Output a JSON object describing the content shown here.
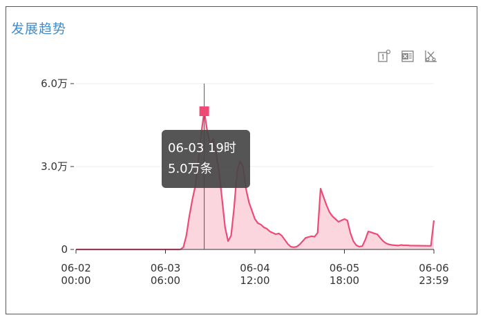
{
  "title": "发展趋势",
  "toolbar": {
    "icons": [
      "one-to-one-icon",
      "excel-export-icon",
      "scissors-icon"
    ]
  },
  "tooltip": {
    "time": "06-03 19时",
    "value": "5.0万条"
  },
  "colors": {
    "title": "#3e8ed0",
    "line": "#ee4a76",
    "area": "#fbd6df",
    "marker": "#ee4a76",
    "grid": "#eeeeee"
  },
  "chart_data": {
    "type": "area",
    "title": "",
    "xlabel": "",
    "ylabel": "",
    "ylim": [
      0,
      60000
    ],
    "y_ticks": [
      {
        "value": 0,
        "label": "0"
      },
      {
        "value": 30000,
        "label": "3.0万"
      },
      {
        "value": 60000,
        "label": "6.0万"
      }
    ],
    "x_ticks": [
      {
        "line1": "06-02",
        "line2": "00:00",
        "hour": 0
      },
      {
        "line1": "06-03",
        "line2": "06:00",
        "hour": 30
      },
      {
        "line1": "06-04",
        "line2": "12:00",
        "hour": 60
      },
      {
        "line1": "06-05",
        "line2": "18:00",
        "hour": 90
      },
      {
        "line1": "06-06",
        "line2": "23:59",
        "hour": 120
      }
    ],
    "x_unit": "hours from 06-02 00:00",
    "highlight": {
      "hour": 43,
      "value": 50000
    },
    "series": [
      {
        "points": [
          [
            0,
            0
          ],
          [
            30,
            0
          ],
          [
            35,
            0
          ],
          [
            36,
            800
          ],
          [
            37,
            5000
          ],
          [
            38,
            12000
          ],
          [
            39,
            18000
          ],
          [
            40,
            23000
          ],
          [
            41,
            32000
          ],
          [
            42,
            42000
          ],
          [
            43,
            50000
          ],
          [
            44,
            43000
          ],
          [
            45,
            38000
          ],
          [
            46,
            40000
          ],
          [
            47,
            35000
          ],
          [
            48,
            28000
          ],
          [
            49,
            18000
          ],
          [
            50,
            8000
          ],
          [
            51,
            3000
          ],
          [
            52,
            5000
          ],
          [
            53,
            15000
          ],
          [
            54,
            28000
          ],
          [
            55,
            32000
          ],
          [
            56,
            30000
          ],
          [
            57,
            22000
          ],
          [
            58,
            17000
          ],
          [
            59,
            14000
          ],
          [
            60,
            11000
          ],
          [
            61,
            9500
          ],
          [
            62,
            9000
          ],
          [
            63,
            8000
          ],
          [
            64,
            7500
          ],
          [
            65,
            6500
          ],
          [
            66,
            6000
          ],
          [
            67,
            5500
          ],
          [
            68,
            5800
          ],
          [
            69,
            5000
          ],
          [
            70,
            3500
          ],
          [
            71,
            2000
          ],
          [
            72,
            1000
          ],
          [
            73,
            800
          ],
          [
            74,
            1000
          ],
          [
            75,
            1800
          ],
          [
            76,
            3000
          ],
          [
            77,
            4200
          ],
          [
            78,
            4500
          ],
          [
            79,
            4800
          ],
          [
            80,
            4600
          ],
          [
            81,
            6000
          ],
          [
            82,
            22000
          ],
          [
            83,
            19000
          ],
          [
            84,
            16000
          ],
          [
            85,
            13500
          ],
          [
            86,
            12000
          ],
          [
            87,
            11000
          ],
          [
            88,
            10000
          ],
          [
            89,
            10500
          ],
          [
            90,
            11000
          ],
          [
            91,
            10500
          ],
          [
            92,
            6000
          ],
          [
            93,
            3000
          ],
          [
            94,
            1500
          ],
          [
            95,
            1000
          ],
          [
            96,
            1200
          ],
          [
            97,
            3500
          ],
          [
            98,
            6500
          ],
          [
            99,
            6200
          ],
          [
            100,
            5800
          ],
          [
            101,
            5500
          ],
          [
            102,
            4200
          ],
          [
            103,
            3000
          ],
          [
            104,
            2200
          ],
          [
            105,
            1800
          ],
          [
            106,
            1600
          ],
          [
            107,
            1500
          ],
          [
            108,
            1400
          ],
          [
            109,
            1600
          ],
          [
            110,
            1500
          ],
          [
            111,
            1500
          ],
          [
            112,
            1400
          ],
          [
            119,
            1300
          ],
          [
            120,
            10500
          ]
        ]
      }
    ]
  }
}
